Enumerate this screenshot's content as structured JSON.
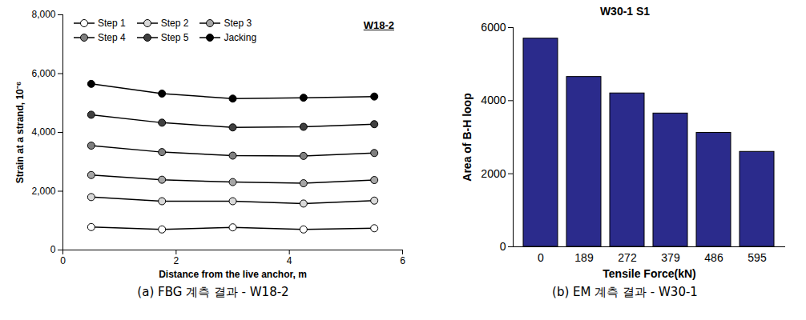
{
  "chart_data": [
    {
      "type": "line",
      "caption": "(a) FBG 계측 결과 - W18-2",
      "annotation": "W18-2",
      "x_label": "Distance from the live anchor, m",
      "y_label": "Strain at a strand, 10⁻⁶",
      "x": [
        0.5,
        1.75,
        3,
        4.25,
        5.5
      ],
      "xlim": [
        0,
        6
      ],
      "xticks": [
        0,
        2,
        4,
        6
      ],
      "ylim": [
        0,
        8000
      ],
      "yticks": [
        0,
        {
          "value": 2000,
          "label": "2,000"
        },
        {
          "value": 4000,
          "label": "4,000"
        },
        {
          "value": 6000,
          "label": "6,000"
        },
        {
          "value": 8000,
          "label": "8,000"
        }
      ],
      "grid": false,
      "legend": "top-left",
      "series": [
        {
          "name": "Step 1",
          "color": "#ffffff",
          "marker": "circle",
          "line_style": "solid",
          "values": [
            780,
            700,
            770,
            700,
            740
          ]
        },
        {
          "name": "Step 2",
          "color": "#d9d9d9",
          "marker": "circle",
          "line_style": "solid",
          "values": [
            1800,
            1660,
            1660,
            1580,
            1680
          ]
        },
        {
          "name": "Step 3",
          "color": "#a6a6a6",
          "marker": "circle",
          "line_style": "solid",
          "values": [
            2550,
            2390,
            2310,
            2270,
            2380
          ]
        },
        {
          "name": "Step 4",
          "color": "#7f7f7f",
          "marker": "circle",
          "line_style": "solid",
          "values": [
            3550,
            3330,
            3210,
            3200,
            3300
          ]
        },
        {
          "name": "Step 5",
          "color": "#404040",
          "marker": "circle",
          "line_style": "solid",
          "values": [
            4600,
            4330,
            4170,
            4190,
            4280
          ]
        },
        {
          "name": "Jacking",
          "color": "#000000",
          "marker": "circle",
          "line_style": "solid",
          "values": [
            5650,
            5320,
            5150,
            5180,
            5220
          ]
        }
      ]
    },
    {
      "type": "bar",
      "caption": "(b) EM 계측 결과 - W30-1",
      "title": "W30-1 S1",
      "x_label": "Tensile Force(kN)",
      "y_label": "Area of B-H loop",
      "categories": [
        "0",
        "189",
        "272",
        "379",
        "486",
        "595"
      ],
      "values": [
        5700,
        4650,
        4200,
        3650,
        3120,
        2600
      ],
      "color": "#2b2b8c",
      "ylim": [
        0,
        6000
      ],
      "yticks": [
        0,
        2000,
        4000,
        6000
      ],
      "grid": false
    }
  ]
}
